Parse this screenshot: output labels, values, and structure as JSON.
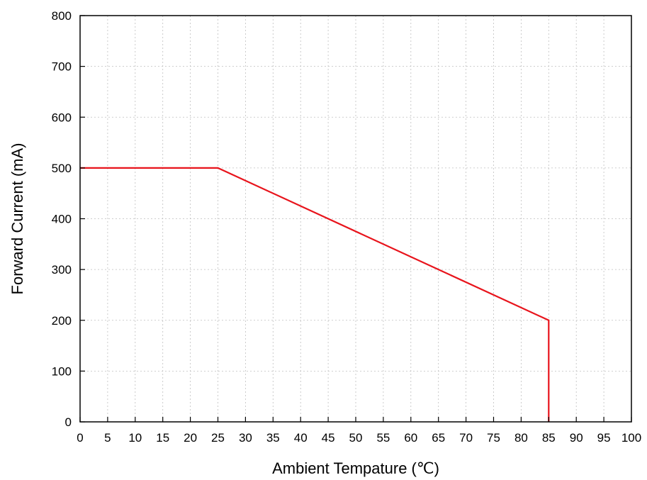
{
  "chart_data": {
    "type": "line",
    "title": "",
    "xlabel": "Ambient Tempature (℃)",
    "ylabel": "Forward Current (mA)",
    "xlim": [
      0,
      100
    ],
    "ylim": [
      0,
      800
    ],
    "x_ticks": [
      0,
      5,
      10,
      15,
      20,
      25,
      30,
      35,
      40,
      45,
      50,
      55,
      60,
      65,
      70,
      75,
      80,
      85,
      90,
      95,
      100
    ],
    "y_ticks": [
      0,
      100,
      200,
      300,
      400,
      500,
      600,
      700,
      800
    ],
    "grid": true,
    "series": [
      {
        "color": "#e8141c",
        "x": [
          0,
          25,
          85,
          85
        ],
        "y": [
          500,
          500,
          200,
          0
        ]
      }
    ]
  }
}
